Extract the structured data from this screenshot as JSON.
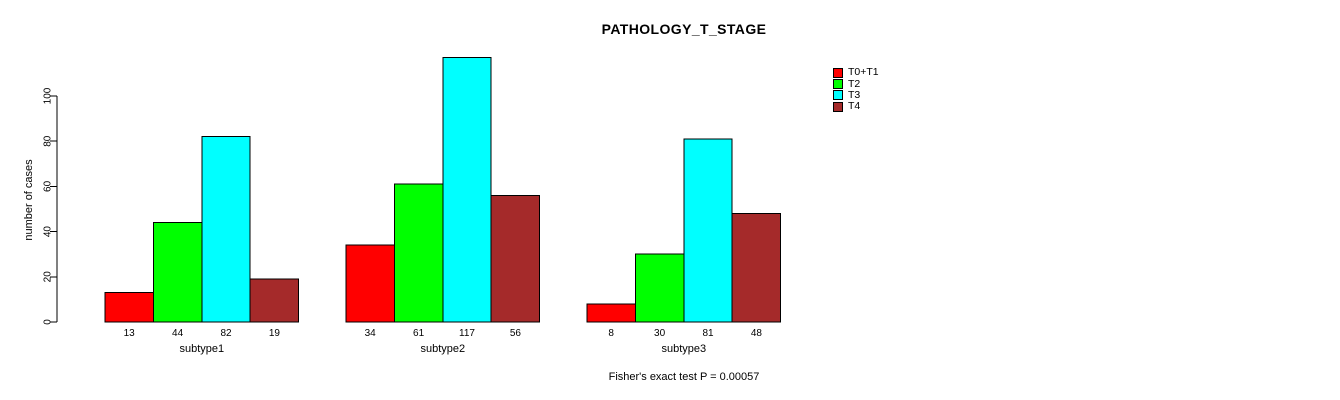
{
  "chart_data": {
    "type": "bar",
    "title": "PATHOLOGY_T_STAGE",
    "xlabel": "",
    "ylabel": "number of cases",
    "categories": [
      "subtype1",
      "subtype2",
      "subtype3"
    ],
    "series": [
      {
        "name": "T0+T1",
        "color": "#FF0000",
        "values": [
          13,
          34,
          8
        ]
      },
      {
        "name": "T2",
        "color": "#00FF00",
        "values": [
          44,
          61,
          30
        ]
      },
      {
        "name": "T3",
        "color": "#00FFFF",
        "values": [
          82,
          117,
          81
        ]
      },
      {
        "name": "T4",
        "color": "#A52A2A",
        "values": [
          19,
          56,
          48
        ]
      }
    ],
    "yticks": [
      0,
      20,
      40,
      60,
      80,
      100
    ],
    "ylim": [
      0,
      117
    ],
    "bar_value_labels_shown": true,
    "grid": false,
    "legend_position": "top-right",
    "annotation": "Fisher's exact test P = 0.00057",
    "background_color": "#FFFFFF",
    "axis_color": "#000000"
  }
}
